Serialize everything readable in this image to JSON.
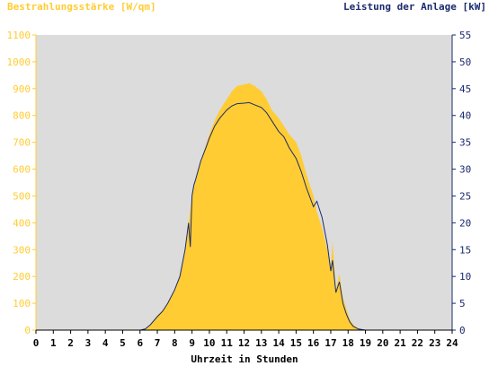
{
  "chart_data": {
    "type": "area",
    "y_left_label": "Bestrahlungsstärke [W/qm]",
    "y_right_label": "Leistung der Anlage [kW]",
    "xlabel": "Uhrzeit in Stunden",
    "xlim": [
      0,
      24
    ],
    "ylim_left": [
      0,
      1100
    ],
    "ylim_right": [
      0,
      55
    ],
    "x_ticks": [
      0,
      1,
      2,
      3,
      4,
      5,
      6,
      7,
      8,
      9,
      10,
      11,
      12,
      13,
      14,
      15,
      16,
      17,
      18,
      19,
      20,
      21,
      22,
      23,
      24
    ],
    "y_left_ticks": [
      0,
      100,
      200,
      300,
      400,
      500,
      600,
      700,
      800,
      900,
      1000,
      1100
    ],
    "y_right_ticks": [
      0,
      5,
      10,
      15,
      20,
      25,
      30,
      35,
      40,
      45,
      50,
      55
    ],
    "grid": false,
    "colors": {
      "irradiance": "#ffcc33",
      "power": "#1a2a6c",
      "plot_bg": "#dcdcdc",
      "left_axis": "#ffcc33",
      "right_axis": "#1a2a6c"
    },
    "series": [
      {
        "axis": "left",
        "x": [
          0,
          6.0,
          6.3,
          6.6,
          7.0,
          7.3,
          7.6,
          8.0,
          8.3,
          8.6,
          8.8,
          9.0,
          9.2,
          9.5,
          9.8,
          10.0,
          10.3,
          10.6,
          11.0,
          11.3,
          11.6,
          12.0,
          12.3,
          12.6,
          13.0,
          13.3,
          13.6,
          14.0,
          14.3,
          14.6,
          15.0,
          15.3,
          15.6,
          16.0,
          16.2,
          16.5,
          16.8,
          17.0,
          17.1,
          17.3,
          17.5,
          17.7,
          17.9,
          18.1,
          18.3,
          18.6,
          19.0,
          24
        ],
        "values": [
          0,
          0,
          5,
          20,
          55,
          75,
          100,
          150,
          200,
          290,
          400,
          500,
          560,
          630,
          690,
          730,
          780,
          820,
          860,
          890,
          910,
          915,
          920,
          910,
          890,
          860,
          820,
          790,
          760,
          730,
          700,
          650,
          580,
          500,
          440,
          380,
          300,
          230,
          330,
          150,
          210,
          120,
          80,
          40,
          20,
          5,
          0,
          0
        ]
      },
      {
        "axis": "right",
        "x": [
          0,
          6.0,
          6.3,
          6.6,
          7.0,
          7.3,
          7.6,
          8.0,
          8.3,
          8.6,
          8.8,
          8.9,
          9.0,
          9.1,
          9.2,
          9.5,
          9.8,
          10.0,
          10.3,
          10.6,
          11.0,
          11.3,
          11.6,
          12.0,
          12.3,
          12.6,
          13.0,
          13.3,
          13.6,
          14.0,
          14.3,
          14.6,
          15.0,
          15.3,
          15.6,
          16.0,
          16.2,
          16.5,
          16.8,
          17.0,
          17.1,
          17.3,
          17.5,
          17.7,
          17.9,
          18.1,
          18.3,
          18.6,
          19.0,
          24
        ],
        "values": [
          0,
          0,
          0.2,
          1,
          2.5,
          3.5,
          5,
          7.5,
          10,
          15,
          20,
          15.5,
          25,
          27,
          28,
          31.5,
          34,
          35.8,
          38,
          39.5,
          41,
          41.8,
          42.2,
          42.3,
          42.4,
          42,
          41.5,
          40.5,
          39,
          37,
          36,
          34,
          32,
          29.5,
          26.5,
          23,
          24,
          21,
          16,
          11,
          13,
          7,
          9,
          5,
          3,
          1.5,
          0.7,
          0.2,
          0,
          0
        ]
      }
    ]
  }
}
